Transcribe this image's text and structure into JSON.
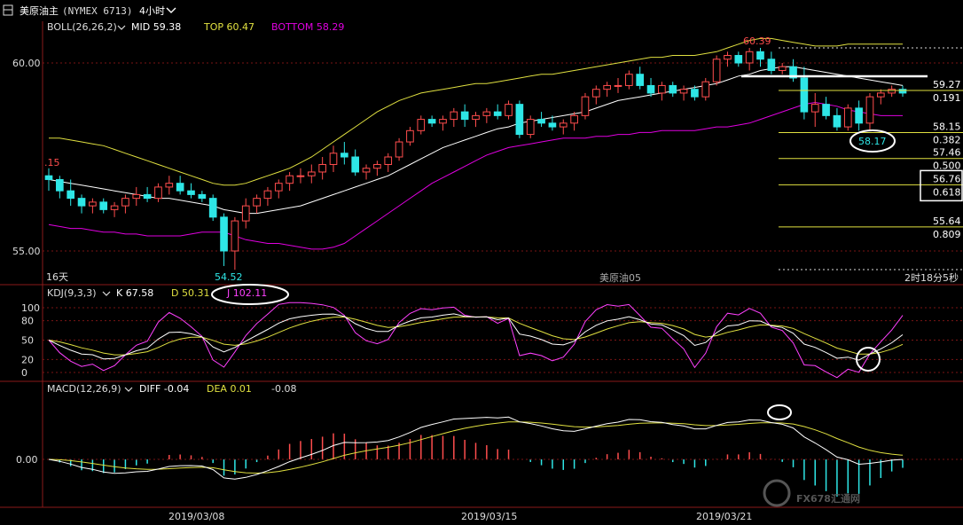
{
  "header": {
    "title": "美原油主",
    "code": "(NYMEX 6713)",
    "period": "4小时",
    "chevron": "chevron-down-icon"
  },
  "boll": {
    "label": "BOLL(26,26,2)",
    "mid": "MID 59.38",
    "top": "TOP 60.47",
    "bottom": "BOTTOM 58.29"
  },
  "price_panel": {
    "high_label": "60.39",
    "low_label": "54.52",
    "left_label": ".15",
    "bottom_left": "16天",
    "center_name": "美原油05",
    "countdown": "2时18分5秒",
    "callout": "58.17",
    "y_ticks": [
      "60.00",
      "55.00"
    ]
  },
  "fib_levels": [
    {
      "price": "59.27",
      "ratio": "0.191"
    },
    {
      "price": "58.15",
      "ratio": "0.382"
    },
    {
      "price": "57.46",
      "ratio": "0.500"
    },
    {
      "price": "56.76",
      "ratio": "0.618"
    },
    {
      "price": "55.64",
      "ratio": "0.809"
    }
  ],
  "kdj": {
    "label": "KDJ(9,3,3)",
    "k": "K 67.58",
    "d": "D 50.31",
    "j": "J 102.11",
    "y_ticks": [
      "100",
      "80",
      "50",
      "20",
      "0"
    ]
  },
  "macd": {
    "label": "MACD(12,26,9)",
    "diff": "DIFF -0.04",
    "dea": "DEA 0.01",
    "macd": "-0.08",
    "y_ticks": [
      "0.00"
    ]
  },
  "x_axis": [
    "2019/03/08",
    "2019/03/15",
    "2019/03/21"
  ],
  "watermark": "FX678汇通网",
  "colors": {
    "up": "#ff4d4d",
    "down": "#2ee6e6",
    "boll_mid": "#ffffff",
    "boll_top": "#e0e040",
    "boll_bottom": "#e000e0",
    "fib": "#e0e040",
    "j_line": "#ff40ff"
  },
  "chart_data": {
    "type": "candlestick",
    "title": "美原油主 (NYMEX 6713) 4小时",
    "ylim": [
      54.3,
      61.0
    ],
    "candles": [
      [
        57.0,
        57.2,
        56.6,
        56.9
      ],
      [
        56.9,
        57.0,
        56.4,
        56.6
      ],
      [
        56.6,
        56.9,
        56.2,
        56.4
      ],
      [
        56.4,
        56.5,
        56.0,
        56.2
      ],
      [
        56.2,
        56.4,
        56.0,
        56.3
      ],
      [
        56.3,
        56.4,
        56.0,
        56.1
      ],
      [
        56.1,
        56.3,
        55.9,
        56.2
      ],
      [
        56.2,
        56.5,
        56.0,
        56.4
      ],
      [
        56.4,
        56.7,
        56.2,
        56.5
      ],
      [
        56.5,
        56.7,
        56.3,
        56.4
      ],
      [
        56.4,
        56.8,
        56.3,
        56.7
      ],
      [
        56.7,
        57.0,
        56.5,
        56.8
      ],
      [
        56.8,
        57.0,
        56.5,
        56.6
      ],
      [
        56.6,
        56.8,
        56.4,
        56.5
      ],
      [
        56.5,
        56.6,
        56.3,
        56.4
      ],
      [
        56.4,
        56.5,
        55.8,
        55.9
      ],
      [
        55.9,
        56.0,
        54.6,
        55.0
      ],
      [
        55.0,
        55.9,
        54.5,
        55.8
      ],
      [
        55.8,
        56.4,
        55.6,
        56.2
      ],
      [
        56.2,
        56.5,
        56.0,
        56.4
      ],
      [
        56.4,
        56.7,
        56.2,
        56.6
      ],
      [
        56.6,
        56.9,
        56.4,
        56.8
      ],
      [
        56.8,
        57.1,
        56.6,
        57.0
      ],
      [
        57.0,
        57.2,
        56.8,
        57.0
      ],
      [
        57.0,
        57.3,
        56.8,
        57.1
      ],
      [
        57.1,
        57.5,
        56.9,
        57.3
      ],
      [
        57.3,
        57.8,
        57.1,
        57.6
      ],
      [
        57.6,
        57.9,
        57.3,
        57.5
      ],
      [
        57.5,
        57.7,
        57.0,
        57.1
      ],
      [
        57.1,
        57.3,
        56.9,
        57.2
      ],
      [
        57.2,
        57.4,
        57.0,
        57.3
      ],
      [
        57.3,
        57.6,
        57.1,
        57.5
      ],
      [
        57.5,
        58.0,
        57.4,
        57.9
      ],
      [
        57.9,
        58.3,
        57.8,
        58.2
      ],
      [
        58.2,
        58.6,
        58.1,
        58.5
      ],
      [
        58.5,
        58.6,
        58.3,
        58.4
      ],
      [
        58.4,
        58.6,
        58.2,
        58.5
      ],
      [
        58.5,
        58.8,
        58.3,
        58.7
      ],
      [
        58.7,
        58.9,
        58.3,
        58.5
      ],
      [
        58.5,
        58.7,
        58.3,
        58.6
      ],
      [
        58.6,
        58.8,
        58.4,
        58.7
      ],
      [
        58.7,
        58.9,
        58.5,
        58.6
      ],
      [
        58.6,
        59.0,
        58.5,
        58.9
      ],
      [
        58.9,
        59.0,
        58.0,
        58.1
      ],
      [
        58.1,
        58.6,
        58.0,
        58.5
      ],
      [
        58.5,
        58.7,
        58.3,
        58.4
      ],
      [
        58.4,
        58.6,
        58.2,
        58.3
      ],
      [
        58.3,
        58.5,
        58.1,
        58.4
      ],
      [
        58.4,
        58.7,
        58.2,
        58.6
      ],
      [
        58.6,
        59.2,
        58.5,
        59.1
      ],
      [
        59.1,
        59.4,
        58.9,
        59.3
      ],
      [
        59.3,
        59.5,
        59.1,
        59.4
      ],
      [
        59.4,
        59.6,
        59.2,
        59.4
      ],
      [
        59.4,
        59.8,
        59.3,
        59.7
      ],
      [
        59.7,
        59.9,
        59.3,
        59.4
      ],
      [
        59.4,
        59.6,
        59.1,
        59.2
      ],
      [
        59.2,
        59.5,
        59.0,
        59.4
      ],
      [
        59.4,
        59.5,
        59.1,
        59.2
      ],
      [
        59.2,
        59.4,
        59.0,
        59.3
      ],
      [
        59.3,
        59.4,
        59.0,
        59.1
      ],
      [
        59.1,
        59.6,
        59.0,
        59.5
      ],
      [
        59.5,
        60.2,
        59.4,
        60.1
      ],
      [
        60.1,
        60.3,
        59.9,
        60.2
      ],
      [
        60.2,
        60.3,
        59.9,
        60.0
      ],
      [
        60.0,
        60.4,
        59.8,
        60.3
      ],
      [
        60.3,
        60.4,
        59.9,
        60.1
      ],
      [
        60.1,
        60.3,
        59.7,
        59.8
      ],
      [
        59.8,
        60.0,
        59.7,
        59.9
      ],
      [
        59.9,
        60.1,
        59.5,
        59.6
      ],
      [
        59.6,
        59.9,
        58.5,
        58.7
      ],
      [
        58.7,
        59.2,
        58.3,
        58.9
      ],
      [
        58.9,
        59.1,
        58.5,
        58.6
      ],
      [
        58.6,
        58.8,
        58.2,
        58.3
      ],
      [
        58.3,
        58.9,
        58.2,
        58.8
      ],
      [
        58.8,
        59.0,
        58.2,
        58.4
      ],
      [
        58.4,
        59.2,
        58.2,
        59.1
      ],
      [
        59.1,
        59.3,
        58.9,
        59.2
      ],
      [
        59.2,
        59.4,
        59.1,
        59.3
      ],
      [
        59.3,
        59.4,
        59.1,
        59.2
      ]
    ],
    "boll_mid": [
      56.9,
      56.85,
      56.8,
      56.75,
      56.7,
      56.65,
      56.6,
      56.55,
      56.5,
      56.45,
      56.4,
      56.4,
      56.35,
      56.3,
      56.25,
      56.2,
      56.1,
      56.05,
      56.0,
      56.0,
      56.05,
      56.1,
      56.15,
      56.2,
      56.3,
      56.4,
      56.5,
      56.6,
      56.7,
      56.8,
      56.9,
      57.0,
      57.15,
      57.3,
      57.45,
      57.6,
      57.75,
      57.85,
      57.95,
      58.05,
      58.15,
      58.25,
      58.3,
      58.4,
      58.45,
      58.5,
      58.55,
      58.6,
      58.65,
      58.7,
      58.8,
      58.9,
      59.0,
      59.05,
      59.1,
      59.15,
      59.2,
      59.25,
      59.3,
      59.35,
      59.4,
      59.45,
      59.55,
      59.65,
      59.7,
      59.8,
      59.85,
      59.9,
      59.9,
      59.85,
      59.8,
      59.75,
      59.7,
      59.65,
      59.6,
      59.55,
      59.5,
      59.45,
      59.4
    ],
    "boll_top": [
      58.0,
      58.0,
      57.95,
      57.9,
      57.85,
      57.8,
      57.7,
      57.6,
      57.5,
      57.4,
      57.3,
      57.2,
      57.1,
      57.0,
      56.9,
      56.8,
      56.75,
      56.75,
      56.8,
      56.9,
      57.0,
      57.1,
      57.2,
      57.35,
      57.5,
      57.7,
      57.9,
      58.1,
      58.3,
      58.5,
      58.7,
      58.85,
      59.0,
      59.1,
      59.2,
      59.25,
      59.3,
      59.35,
      59.4,
      59.45,
      59.45,
      59.5,
      59.55,
      59.6,
      59.65,
      59.7,
      59.7,
      59.75,
      59.8,
      59.85,
      59.9,
      59.95,
      60.0,
      60.05,
      60.1,
      60.15,
      60.15,
      60.2,
      60.2,
      60.2,
      60.25,
      60.3,
      60.4,
      60.5,
      60.6,
      60.65,
      60.65,
      60.6,
      60.55,
      60.5,
      60.45,
      60.45,
      60.45,
      60.5,
      60.5,
      60.5,
      60.5,
      60.5,
      60.5
    ],
    "boll_bottom": [
      55.7,
      55.65,
      55.6,
      55.6,
      55.55,
      55.5,
      55.5,
      55.45,
      55.45,
      55.4,
      55.4,
      55.4,
      55.4,
      55.45,
      55.5,
      55.5,
      55.5,
      55.4,
      55.3,
      55.25,
      55.2,
      55.2,
      55.15,
      55.1,
      55.05,
      55.05,
      55.1,
      55.2,
      55.4,
      55.6,
      55.8,
      56.0,
      56.2,
      56.4,
      56.6,
      56.8,
      56.95,
      57.1,
      57.25,
      57.4,
      57.55,
      57.65,
      57.75,
      57.8,
      57.85,
      57.9,
      57.95,
      58.0,
      58.0,
      58.0,
      58.05,
      58.05,
      58.1,
      58.1,
      58.15,
      58.15,
      58.2,
      58.2,
      58.2,
      58.2,
      58.25,
      58.3,
      58.3,
      58.35,
      58.4,
      58.5,
      58.6,
      58.7,
      58.8,
      58.9,
      58.95,
      58.9,
      58.85,
      58.75,
      58.7,
      58.65,
      58.6,
      58.6,
      58.6
    ]
  }
}
